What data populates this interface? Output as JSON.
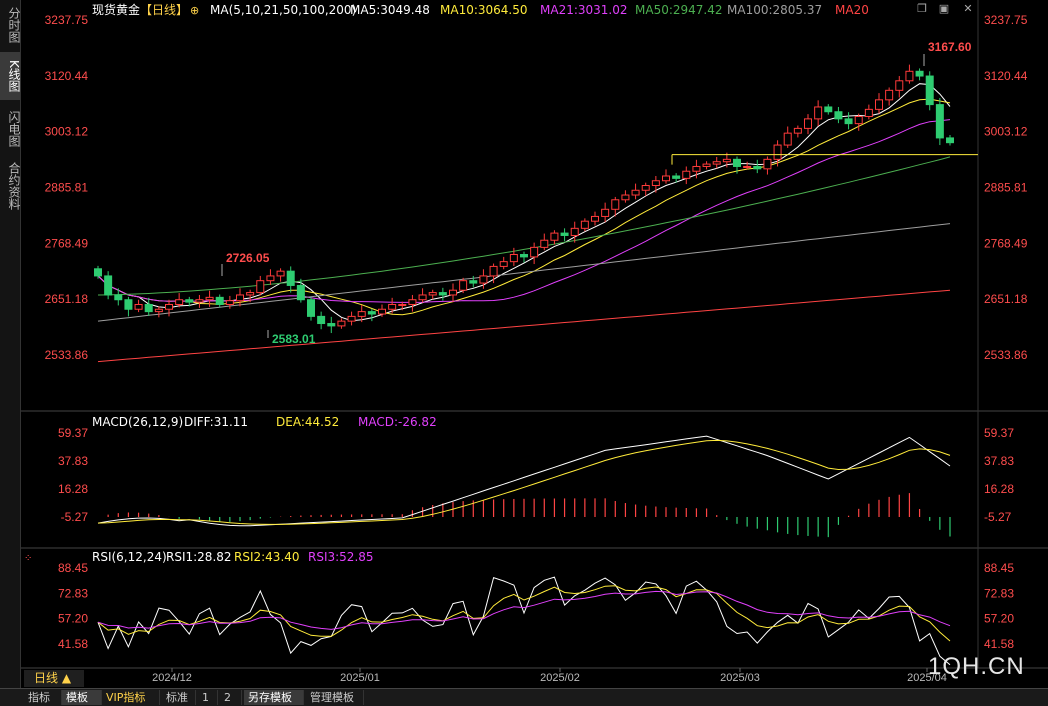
{
  "sidebar": {
    "tabs": [
      {
        "label": "分时图",
        "active": false
      },
      {
        "label": "K线图",
        "active": true
      },
      {
        "label": "闪电图",
        "active": false
      },
      {
        "label": "合约资料",
        "active": false
      }
    ]
  },
  "header": {
    "title": "现货黄金",
    "period_tag": "【日线】",
    "ma_params": "MA(5,10,21,50,100,200)",
    "ma_values": [
      {
        "label": "MA5:3049.48",
        "color": "#ffffff"
      },
      {
        "label": "MA10:3064.50",
        "color": "#ffeb3b"
      },
      {
        "label": "MA21:3031.02",
        "color": "#e040fb"
      },
      {
        "label": "MA50:2947.42",
        "color": "#4caf50"
      },
      {
        "label": "MA100:2805.37",
        "color": "#9e9e9e"
      },
      {
        "label": "MA20",
        "color": "#ff4444"
      }
    ]
  },
  "macd_header": {
    "label": "MACD(26,12,9)",
    "items": [
      {
        "label": "DIFF:31.11",
        "color": "#ffffff"
      },
      {
        "label": "DEA:44.52",
        "color": "#ffeb3b"
      },
      {
        "label": "MACD:-26.82",
        "color": "#e040fb"
      }
    ]
  },
  "rsi_header": {
    "label": "RSI(6,12,24)",
    "items": [
      {
        "label": "RSI1:28.82",
        "color": "#ffffff"
      },
      {
        "label": "RSI2:43.40",
        "color": "#ffeb3b"
      },
      {
        "label": "RSI3:52.85",
        "color": "#e040fb"
      }
    ]
  },
  "bottombar": {
    "period": "日线 ▲",
    "tabs": [
      {
        "label": "指标",
        "active": false,
        "vip": false
      },
      {
        "label": "模板",
        "active": true,
        "vip": false
      },
      {
        "label": "VIP指标",
        "active": false,
        "vip": true
      },
      {
        "label": "标准",
        "active": false,
        "vip": false
      },
      {
        "label": "1",
        "active": false,
        "vip": false
      },
      {
        "label": "2",
        "active": false,
        "vip": false
      },
      {
        "label": "另存模板",
        "active": true,
        "vip": false
      },
      {
        "label": "管理模板",
        "active": false,
        "vip": false
      }
    ]
  },
  "watermark": "1QH.CN",
  "chart_data": {
    "type": "candlestick",
    "price_axis": {
      "ticks": [
        "3237.75",
        "3120.44",
        "3003.12",
        "2885.81",
        "2768.49",
        "2651.18",
        "2533.86"
      ]
    },
    "macd_axis": {
      "ticks": [
        "59.37",
        "37.83",
        "16.28",
        "-5.27"
      ]
    },
    "rsi_axis": {
      "ticks": [
        "88.45",
        "72.83",
        "57.20",
        "41.58"
      ]
    },
    "x_ticks": [
      "2024/12",
      "2025/01",
      "2025/02",
      "2025/03",
      "2025/04"
    ],
    "annotations": [
      {
        "text": "3167.60",
        "kind": "high"
      },
      {
        "text": "2726.05",
        "kind": "high"
      },
      {
        "text": "2583.01",
        "kind": "low"
      }
    ],
    "horizontal_line": 2955,
    "ohlc": [],
    "colors": {
      "up": "#ff3b3b",
      "down": "#2ecc71"
    }
  }
}
